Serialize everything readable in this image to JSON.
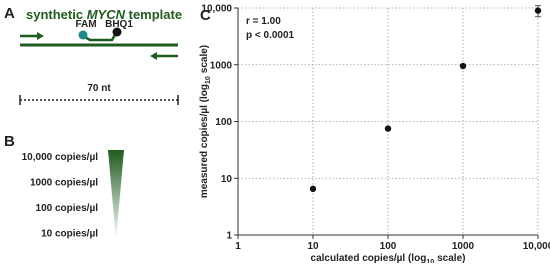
{
  "panel_a": {
    "label": "A",
    "title_parts": [
      "synthetic",
      "MYCN",
      "template"
    ],
    "probe_labels": [
      "FAM",
      "BHQ1"
    ],
    "length_label": "70 nt"
  },
  "panel_b": {
    "label": "B",
    "levels": [
      "10,000 copies/µl",
      "1000 copies/µl",
      "100 copies/µl",
      "10 copies/µl"
    ]
  },
  "chart_data": {
    "type": "scatter",
    "panel_label": "C",
    "x_label_parts": [
      "calculated copies/µl (log",
      "10",
      "scale)"
    ],
    "y_label_parts": [
      "measured copies/µl (log",
      "10",
      "scale)"
    ],
    "annotations": [
      "r = 1.00",
      "p < 0.0001"
    ],
    "x": [
      10,
      100,
      1000,
      10000
    ],
    "values": [
      6.5,
      75,
      950,
      9000
    ],
    "errors": [
      0,
      0,
      0,
      2000
    ],
    "color": "#111111",
    "log_scale": true,
    "grid": true,
    "xlim": [
      1,
      10000
    ],
    "ylim": [
      1,
      10000
    ],
    "xticks": [
      1,
      10,
      100,
      1000,
      {
        "value": 10000,
        "label": "10,000"
      }
    ],
    "yticks": [
      1,
      10,
      100,
      1000,
      {
        "value": 10000,
        "label": "10,000"
      }
    ]
  }
}
